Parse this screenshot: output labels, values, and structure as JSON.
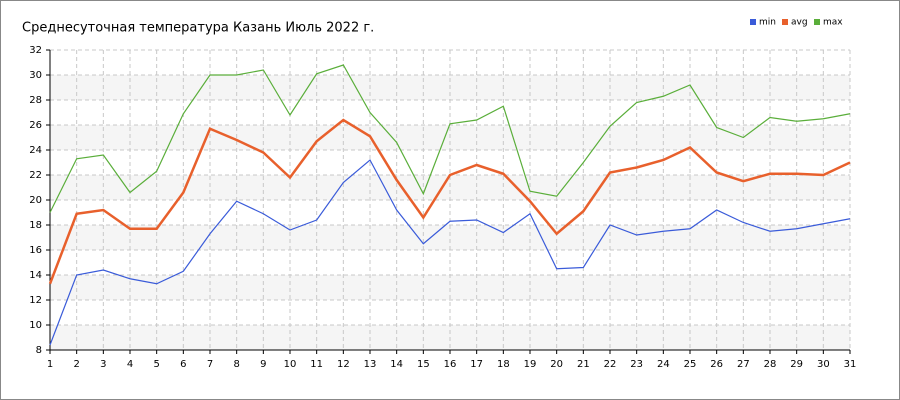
{
  "chart_data": {
    "type": "line",
    "title": "Среднесуточная температура Казань  Июль 2022 г.",
    "x": [
      1,
      2,
      3,
      4,
      5,
      6,
      7,
      8,
      9,
      10,
      11,
      12,
      13,
      14,
      15,
      16,
      17,
      18,
      19,
      20,
      21,
      22,
      23,
      24,
      25,
      26,
      27,
      28,
      29,
      30,
      31
    ],
    "xlim": [
      1,
      31
    ],
    "xticks": [
      1,
      2,
      3,
      4,
      5,
      6,
      7,
      8,
      9,
      10,
      11,
      12,
      13,
      14,
      15,
      16,
      17,
      18,
      19,
      20,
      21,
      22,
      23,
      24,
      25,
      26,
      27,
      28,
      29,
      30,
      31
    ],
    "ylim": [
      8,
      32
    ],
    "yticks": [
      8,
      10,
      12,
      14,
      16,
      18,
      20,
      22,
      24,
      26,
      28,
      30,
      32
    ],
    "grid": true,
    "legend": "top-right",
    "series": [
      {
        "name": "min",
        "color": "#3a5bd9",
        "values": [
          8.4,
          14.0,
          14.4,
          13.7,
          13.3,
          14.3,
          17.3,
          19.9,
          18.9,
          17.6,
          18.4,
          21.4,
          23.2,
          19.2,
          16.5,
          18.3,
          18.4,
          17.4,
          18.9,
          14.5,
          14.6,
          18.0,
          17.2,
          17.5,
          17.7,
          19.2,
          18.2,
          17.5,
          17.7,
          18.1,
          18.5
        ]
      },
      {
        "name": "avg",
        "color": "#e8602c",
        "values": [
          13.3,
          18.9,
          19.2,
          17.7,
          17.7,
          20.6,
          25.7,
          24.8,
          23.8,
          21.8,
          24.7,
          26.4,
          25.1,
          21.6,
          18.6,
          22.0,
          22.8,
          22.1,
          19.9,
          17.3,
          19.1,
          22.2,
          22.6,
          23.2,
          24.2,
          22.2,
          21.5,
          22.1,
          22.1,
          22.0,
          23.0
        ]
      },
      {
        "name": "max",
        "color": "#5aae3a",
        "values": [
          19.0,
          23.3,
          23.6,
          20.6,
          22.3,
          26.9,
          30.0,
          30.0,
          30.4,
          26.8,
          30.1,
          30.8,
          27.0,
          24.6,
          20.5,
          26.1,
          26.4,
          27.5,
          20.7,
          20.3,
          23.0,
          25.9,
          27.8,
          28.3,
          29.2,
          25.8,
          25.0,
          26.6,
          26.3,
          26.5,
          26.9
        ]
      }
    ]
  }
}
